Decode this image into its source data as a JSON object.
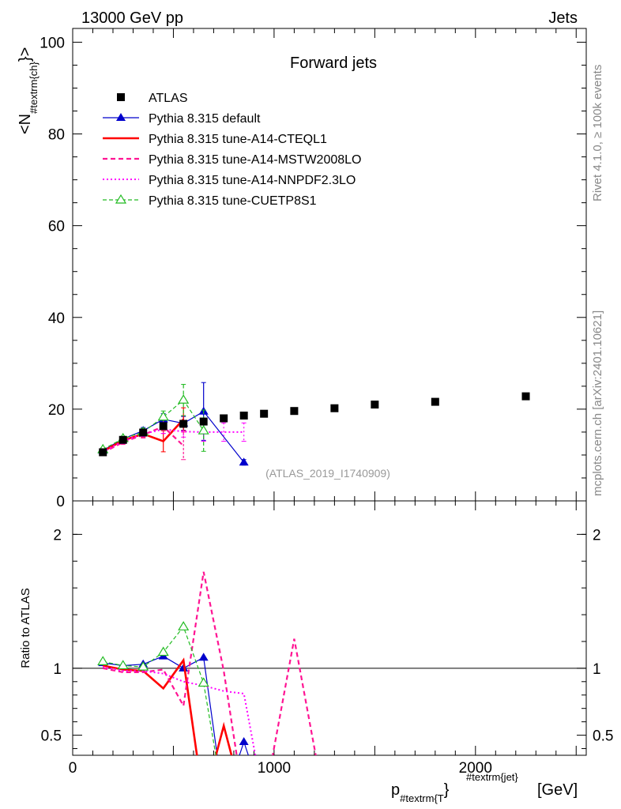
{
  "header": {
    "energy_label": "13000 GeV pp",
    "category_label": "Jets"
  },
  "side_labels": {
    "rivet": "Rivet 4.1.0, ≥ 100k events",
    "source": "mcplots.cern.ch [arXiv:2401.10621]"
  },
  "chart_data": [
    {
      "type": "line",
      "title": "Forward jets",
      "analysis_tag": "(ATLAS_2019_I1740909)",
      "ylabel": "<N_{#textrm{ch}}>",
      "ylabel_main": "<N",
      "ylabel_sub": "#textrm{ch}",
      "ylabel_close": "}>",
      "xlim": [
        0,
        2550
      ],
      "ylim": [
        0,
        103
      ],
      "yticks": [
        0,
        20,
        40,
        60,
        80,
        100
      ],
      "ytick_labels": [
        "0",
        "20",
        "40",
        "60",
        "80",
        "100"
      ],
      "legend": [
        "ATLAS",
        "Pythia 8.315 default",
        "Pythia 8.315 tune-A14-CTEQL1",
        "Pythia 8.315 tune-A14-MSTW2008LO",
        "Pythia 8.315 tune-A14-NNPDF2.3LO",
        "Pythia 8.315 tune-CUETP8S1"
      ],
      "series": [
        {
          "name": "ATLAS",
          "color": "#000000",
          "style": "markers-square",
          "x": [
            150,
            250,
            350,
            450,
            550,
            650,
            750,
            850,
            950,
            1100,
            1300,
            1500,
            1800,
            2250
          ],
          "y": [
            10.6,
            13.3,
            14.9,
            16.3,
            16.8,
            17.3,
            18.0,
            18.6,
            19.0,
            19.6,
            20.2,
            21.0,
            21.6,
            22.8
          ]
        },
        {
          "name": "Pythia 8.315 default",
          "color": "#0000cc",
          "style": "solid-thin-triangle",
          "x": [
            150,
            250,
            350,
            450,
            550,
            650,
            850
          ],
          "y": [
            11.0,
            13.5,
            15.3,
            17.8,
            16.9,
            19.5,
            8.4
          ],
          "err": [
            0.4,
            0.5,
            0.7,
            1.2,
            1.5,
            6.3,
            0.6
          ]
        },
        {
          "name": "Pythia 8.315 tune-A14-CTEQL1",
          "color": "#ff0000",
          "style": "solid-thick",
          "x": [
            150,
            250,
            350,
            450,
            550
          ],
          "y": [
            10.8,
            13.2,
            14.6,
            13.0,
            17.8
          ],
          "err": [
            0.4,
            0.5,
            0.7,
            2.3,
            2.5
          ]
        },
        {
          "name": "Pythia 8.315 tune-A14-MSTW2008LO",
          "color": "#ff1493",
          "style": "dashed",
          "x": [
            150,
            250,
            350,
            450,
            550
          ],
          "y": [
            10.5,
            12.8,
            14.4,
            16.2,
            12.0
          ],
          "err": [
            0.4,
            0.5,
            0.7,
            1.5,
            3.0
          ]
        },
        {
          "name": "Pythia 8.315 tune-A14-NNPDF2.3LO",
          "color": "#ff00ff",
          "style": "dotted",
          "x": [
            150,
            250,
            350,
            450,
            550,
            650,
            750,
            850
          ],
          "y": [
            10.7,
            13.0,
            14.6,
            15.6,
            15.1,
            15.0,
            15.0,
            15.0
          ],
          "err": [
            0.4,
            0.5,
            0.6,
            0.9,
            1.2,
            2.0,
            2.0,
            2.0
          ]
        },
        {
          "name": "Pythia 8.315 tune-CUETP8S1",
          "color": "#22bb22",
          "style": "dashed-thin-open-triangle",
          "x": [
            150,
            250,
            350,
            450,
            550,
            650
          ],
          "y": [
            11.2,
            13.6,
            15.0,
            18.3,
            22.0,
            15.3
          ],
          "err": [
            0.4,
            0.5,
            0.8,
            1.3,
            3.4,
            4.5
          ]
        }
      ]
    },
    {
      "type": "line",
      "title": "",
      "ylabel": "Ratio to ATLAS",
      "xlabel": "p_{#textrm{T}}^{#textrm{jet}} [GeV]",
      "xlabel_main": "p",
      "xlabel_sub": "#textrm{T",
      "xlabel_close": "}",
      "xlabel_sup": "#textrm{jet}",
      "xlabel_unit": "[GeV]",
      "xlim": [
        0,
        2550
      ],
      "ylim": [
        0.35,
        2.25
      ],
      "xticks": [
        0,
        1000,
        2000
      ],
      "xtick_labels": [
        "0",
        "1000",
        "2000"
      ],
      "yticks": [
        0.5,
        1,
        2
      ],
      "ytick_labels": [
        "0.5",
        "1",
        "2"
      ],
      "reference_line": 1,
      "series": [
        {
          "name": "Pythia 8.315 default",
          "color": "#0000cc",
          "style": "solid-thin-triangle",
          "x": [
            150,
            250,
            350,
            450,
            550,
            650,
            750,
            850,
            950
          ],
          "y": [
            1.04,
            1.02,
            1.03,
            1.09,
            1.0,
            1.08,
            0.0,
            0.45,
            0.0
          ]
        },
        {
          "name": "Pythia 8.315 tune-A14-CTEQL1",
          "color": "#ff0000",
          "style": "solid-thick",
          "x": [
            150,
            250,
            350,
            450,
            550,
            650,
            750,
            850
          ],
          "y": [
            1.02,
            0.99,
            0.98,
            0.85,
            1.06,
            0.0,
            0.57,
            0.0
          ]
        },
        {
          "name": "Pythia 8.315 tune-A14-MSTW2008LO",
          "color": "#ff1493",
          "style": "dashed",
          "x": [
            150,
            250,
            350,
            450,
            550,
            650,
            750,
            850,
            950,
            1100,
            1250
          ],
          "y": [
            1.0,
            0.97,
            0.97,
            0.99,
            0.72,
            1.72,
            0.98,
            0.0,
            0.0,
            1.22,
            0.0
          ]
        },
        {
          "name": "Pythia 8.315 tune-A14-NNPDF2.3LO",
          "color": "#ff00ff",
          "style": "dotted",
          "x": [
            150,
            250,
            350,
            450,
            550,
            650,
            750,
            850,
            950
          ],
          "y": [
            1.01,
            0.98,
            0.98,
            0.96,
            0.9,
            0.87,
            0.83,
            0.81,
            0.0
          ]
        },
        {
          "name": "Pythia 8.315 tune-CUETP8S1",
          "color": "#22bb22",
          "style": "dashed-thin-open-triangle",
          "x": [
            150,
            250,
            350,
            450,
            550,
            650,
            750
          ],
          "y": [
            1.05,
            1.02,
            1.01,
            1.12,
            1.31,
            0.89,
            0.0
          ]
        }
      ]
    }
  ]
}
